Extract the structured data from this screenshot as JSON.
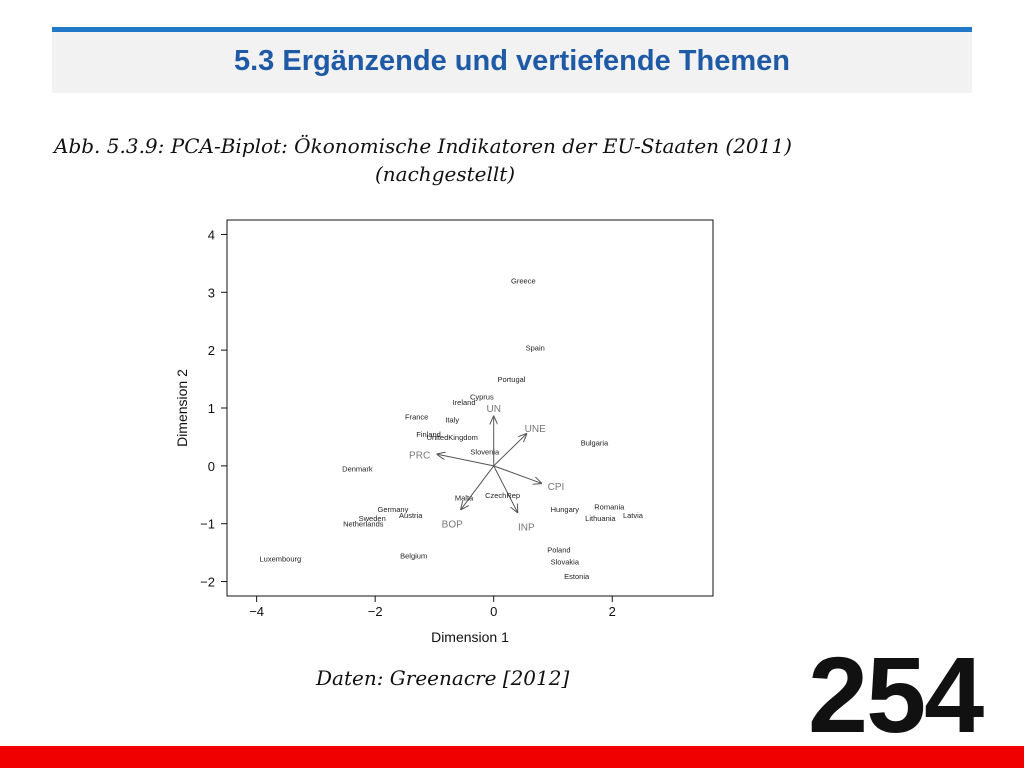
{
  "slide": {
    "title": "5.3 Ergänzende und vertiefende Themen",
    "page_number": "254",
    "colors": {
      "accent": "#1f78c8",
      "title": "#1f5aa6",
      "footer": "#f00000"
    }
  },
  "figure": {
    "caption_line1": "Abb. 5.3.9: PCA-Biplot: Ökonomische Indikatoren der EU-Staaten (2011)",
    "caption_line2": "(nachgestellt)",
    "source": "Daten: Greenacre [2012]"
  },
  "chart_data": {
    "type": "scatter",
    "xlabel": "Dimension 1",
    "ylabel": "Dimension 2",
    "xlim": [
      -4.5,
      3.7
    ],
    "ylim": [
      -2.25,
      4.25
    ],
    "xticks": [
      -4,
      -2,
      0,
      2
    ],
    "yticks": [
      -2,
      -1,
      0,
      1,
      2,
      3,
      4
    ],
    "grid": false,
    "points": [
      {
        "label": "Greece",
        "x": 0.5,
        "y": 3.2
      },
      {
        "label": "Spain",
        "x": 0.7,
        "y": 2.05
      },
      {
        "label": "Portugal",
        "x": 0.3,
        "y": 1.5
      },
      {
        "label": "Cyprus",
        "x": -0.2,
        "y": 1.2
      },
      {
        "label": "Ireland",
        "x": -0.5,
        "y": 1.1
      },
      {
        "label": "France",
        "x": -1.3,
        "y": 0.85
      },
      {
        "label": "Italy",
        "x": -0.7,
        "y": 0.8
      },
      {
        "label": "Finland",
        "x": -1.1,
        "y": 0.55
      },
      {
        "label": "UnitedKingdom",
        "x": -0.7,
        "y": 0.5
      },
      {
        "label": "Slovenia",
        "x": -0.15,
        "y": 0.25
      },
      {
        "label": "Bulgaria",
        "x": 1.7,
        "y": 0.4
      },
      {
        "label": "Denmark",
        "x": -2.3,
        "y": -0.05
      },
      {
        "label": "Malta",
        "x": -0.5,
        "y": -0.55
      },
      {
        "label": "CzechRep",
        "x": 0.15,
        "y": -0.5
      },
      {
        "label": "Germany",
        "x": -1.7,
        "y": -0.75
      },
      {
        "label": "Austria",
        "x": -1.4,
        "y": -0.85
      },
      {
        "label": "Sweden",
        "x": -2.05,
        "y": -0.9
      },
      {
        "label": "Netherlands",
        "x": -2.2,
        "y": -1.0
      },
      {
        "label": "Hungary",
        "x": 1.2,
        "y": -0.75
      },
      {
        "label": "Romania",
        "x": 1.95,
        "y": -0.7
      },
      {
        "label": "Latvia",
        "x": 2.35,
        "y": -0.85
      },
      {
        "label": "Lithuania",
        "x": 1.8,
        "y": -0.9
      },
      {
        "label": "Poland",
        "x": 1.1,
        "y": -1.45
      },
      {
        "label": "Slovakia",
        "x": 1.2,
        "y": -1.65
      },
      {
        "label": "Estonia",
        "x": 1.4,
        "y": -1.9
      },
      {
        "label": "Luxembourg",
        "x": -3.6,
        "y": -1.6
      },
      {
        "label": "Belgium",
        "x": -1.35,
        "y": -1.55
      }
    ],
    "arrows": [
      {
        "label": "UN",
        "x": 0.0,
        "y": 0.85,
        "lx": 0.0,
        "ly": 1.0
      },
      {
        "label": "UNE",
        "x": 0.55,
        "y": 0.55,
        "lx": 0.7,
        "ly": 0.65
      },
      {
        "label": "PRC",
        "x": -0.95,
        "y": 0.2,
        "lx": -1.25,
        "ly": 0.2
      },
      {
        "label": "CPI",
        "x": 0.8,
        "y": -0.3,
        "lx": 1.05,
        "ly": -0.35
      },
      {
        "label": "BOP",
        "x": -0.55,
        "y": -0.75,
        "lx": -0.7,
        "ly": -1.0
      },
      {
        "label": "INP",
        "x": 0.4,
        "y": -0.8,
        "lx": 0.55,
        "ly": -1.05
      }
    ]
  }
}
